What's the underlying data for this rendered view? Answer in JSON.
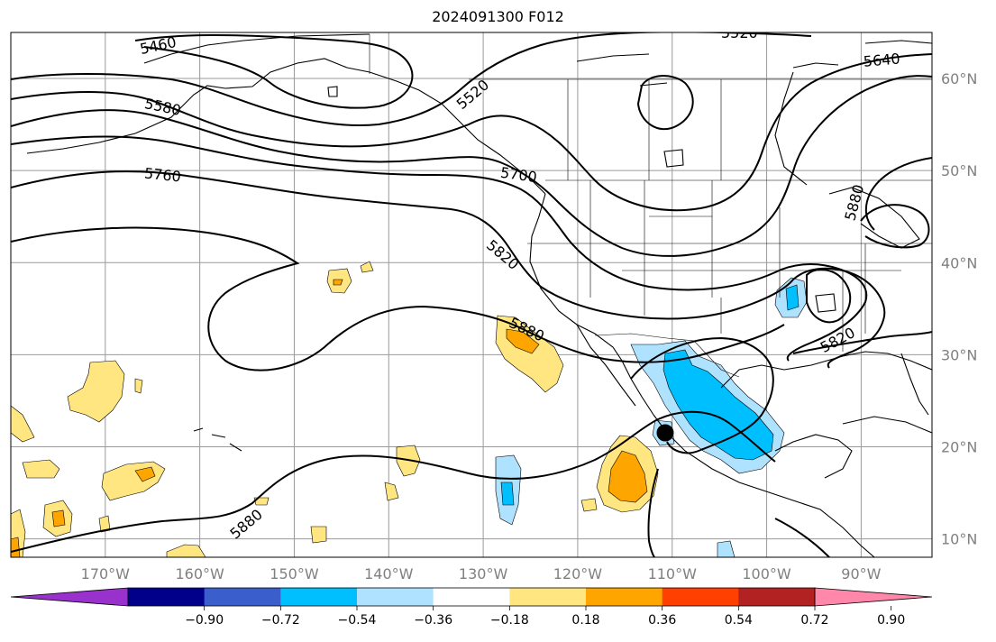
{
  "title": "2024091300 F012",
  "map": {
    "lon_min": -180,
    "lon_max": -82.5,
    "lat_min": 8,
    "lat_max": 65,
    "lat_ticks": [
      {
        "value": 60,
        "label": "60°N"
      },
      {
        "value": 50,
        "label": "50°N"
      },
      {
        "value": 40,
        "label": "40°N"
      },
      {
        "value": 30,
        "label": "30°N"
      },
      {
        "value": 20,
        "label": "20°N"
      },
      {
        "value": 10,
        "label": "10°N"
      }
    ],
    "lon_ticks": [
      {
        "value": -170,
        "label": "170°W"
      },
      {
        "value": -160,
        "label": "160°W"
      },
      {
        "value": -150,
        "label": "150°W"
      },
      {
        "value": -140,
        "label": "140°W"
      },
      {
        "value": -130,
        "label": "130°W"
      },
      {
        "value": -120,
        "label": "120°W"
      },
      {
        "value": -110,
        "label": "110°W"
      },
      {
        "value": -100,
        "label": "100°W"
      },
      {
        "value": -90,
        "label": "90°W"
      }
    ],
    "contour_labels": [
      "5460",
      "5520",
      "5520",
      "5580",
      "5640",
      "5760",
      "5700",
      "5820",
      "5880",
      "5880",
      "5880",
      "5820"
    ],
    "colors": {
      "neg_strong": "#00bfff",
      "neg_weak": "#aee2ff",
      "pos_weak": "#ffe680",
      "pos_strong": "#ffa500",
      "marker": "#000000"
    }
  },
  "colorbar": {
    "colors": [
      "#9932cc",
      "#00008b",
      "#3a5fcd",
      "#00bfff",
      "#aee2ff",
      "#ffffff",
      "#ffe680",
      "#ffa500",
      "#ff4000",
      "#b22222",
      "#ff88aa"
    ],
    "labels": [
      "−0.90",
      "−0.72",
      "−0.54",
      "−0.36",
      "−0.18",
      "0.18",
      "0.36",
      "0.54",
      "0.72",
      "0.90"
    ]
  }
}
